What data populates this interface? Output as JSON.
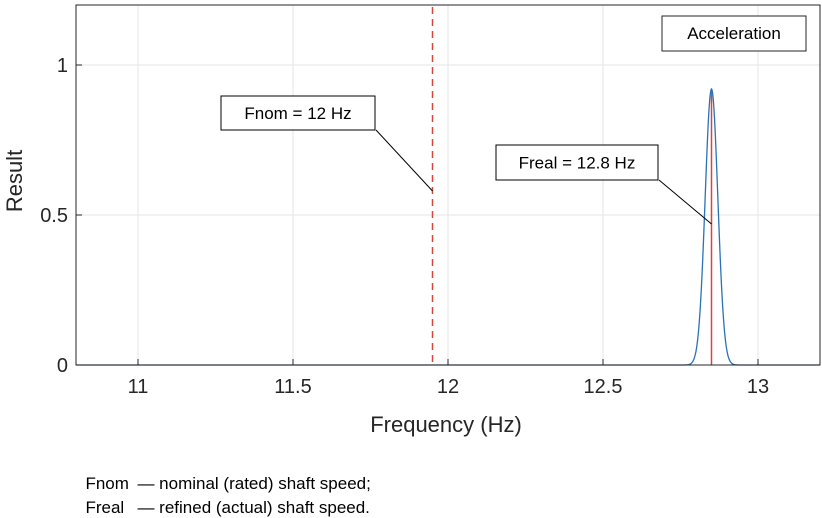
{
  "chart_data": {
    "type": "line",
    "xlabel": "Frequency (Hz)",
    "ylabel": "Result",
    "xlim": [
      10.8,
      13.2
    ],
    "ylim": [
      0,
      1.2
    ],
    "xticks": [
      11,
      11.5,
      12,
      12.5,
      13
    ],
    "xtick_labels": [
      "11",
      "11.5",
      "12",
      "12.5",
      "13"
    ],
    "yticks": [
      0,
      0.5,
      1
    ],
    "ytick_labels": [
      "0",
      "0.5",
      "1"
    ],
    "grid": true,
    "legend": {
      "label": "Acceleration",
      "placement": "top-right"
    },
    "series": [
      {
        "name": "Acceleration",
        "color": "#2a72b5",
        "peak_x": 12.85,
        "peak_y": 0.92,
        "half_width": 0.045,
        "x": [
          10.8,
          12.75,
          12.79,
          12.82,
          12.84,
          12.85,
          12.86,
          12.88,
          12.91,
          12.95,
          13.2
        ],
        "y": [
          0.0,
          0.0,
          0.03,
          0.45,
          0.88,
          0.92,
          0.88,
          0.45,
          0.03,
          0.0,
          0.0
        ]
      }
    ],
    "reference_lines": [
      {
        "x": 11.95,
        "style": "dashed",
        "color": "#d9453a"
      },
      {
        "x": 12.85,
        "style": "solid",
        "color": "#d9453a"
      }
    ],
    "annotations": [
      {
        "text": "Fnom = 12 Hz",
        "target_x": 11.95,
        "target_y": 0.58
      },
      {
        "text": "Freal = 12.8 Hz",
        "target_x": 12.85,
        "target_y": 0.47
      }
    ]
  },
  "notes": [
    {
      "term": "Fnom",
      "text": "— nominal (rated) shaft speed;"
    },
    {
      "term": "Freal",
      "text": "— refined (actual) shaft speed."
    }
  ]
}
